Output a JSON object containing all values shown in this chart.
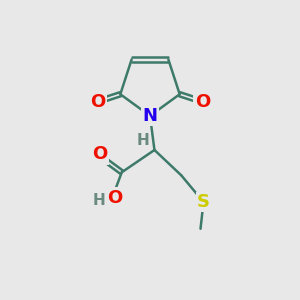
{
  "background_color": "#e8e8e8",
  "bond_color": "#3d7a6a",
  "bond_width": 1.8,
  "atom_colors": {
    "O": "#ee1100",
    "N": "#2200ee",
    "S": "#cccc00",
    "C": "#3d7a6a",
    "H": "#6a8a80"
  },
  "font_size_atom": 13,
  "font_size_H": 11,
  "figsize": [
    3.0,
    3.0
  ],
  "dpi": 100
}
